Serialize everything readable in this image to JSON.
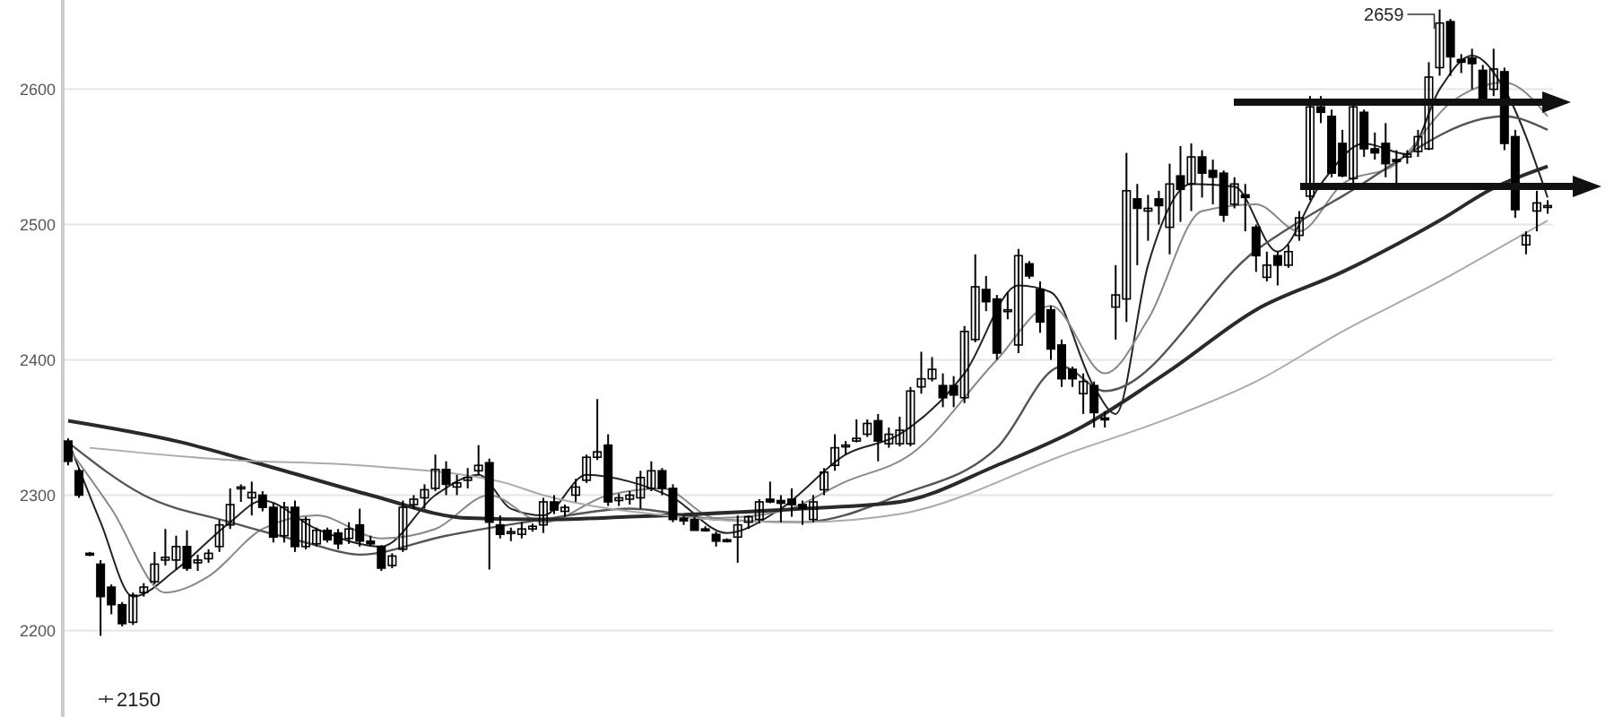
{
  "chart_data": {
    "type": "candlestick",
    "categories": [
      null,
      null,
      null,
      null,
      null,
      null,
      null,
      null,
      null,
      null,
      null,
      null,
      null,
      null,
      null,
      null,
      null,
      null,
      null,
      null,
      null,
      null,
      null,
      null,
      null,
      null,
      null,
      null,
      null,
      null,
      null,
      null,
      null,
      null,
      null,
      null,
      null,
      null,
      null,
      null,
      null,
      null,
      null,
      null,
      null,
      null,
      null,
      null,
      null,
      null,
      null,
      null,
      null,
      null,
      null,
      null,
      null,
      null,
      null,
      null,
      null,
      null,
      null,
      null,
      null,
      null,
      null,
      null,
      null,
      null,
      null,
      null,
      null,
      null,
      null,
      null,
      null,
      null,
      null,
      null,
      null,
      null,
      null,
      null,
      null,
      null,
      null,
      null,
      null,
      null,
      null,
      null,
      null,
      null,
      null,
      null,
      null,
      null,
      null,
      null,
      null,
      null,
      null,
      null,
      null,
      null,
      null,
      null,
      null,
      null,
      null,
      null,
      null,
      null,
      null,
      null,
      null,
      null,
      null,
      null,
      null,
      null,
      null,
      null,
      null,
      null,
      null,
      null,
      null,
      null,
      null,
      null,
      null,
      null,
      null,
      null,
      null,
      null
    ],
    "ohlc": [
      [
        2340,
        2342,
        2322,
        2325
      ],
      [
        2318,
        2320,
        2298,
        2300
      ],
      [
        2257,
        2258,
        2255,
        2256
      ],
      [
        2249,
        2252,
        2196,
        2225
      ],
      [
        2232,
        2234,
        2212,
        2219
      ],
      [
        2219,
        2221,
        2203,
        2205
      ],
      [
        2206,
        2228,
        2204,
        2226
      ],
      [
        2228,
        2235,
        2225,
        2232
      ],
      [
        2236,
        2258,
        2234,
        2249
      ],
      [
        2252,
        2275,
        2248,
        2254
      ],
      [
        2252,
        2270,
        2245,
        2262
      ],
      [
        2262,
        2274,
        2244,
        2246
      ],
      [
        2250,
        2256,
        2244,
        2252
      ],
      [
        2253,
        2260,
        2250,
        2257
      ],
      [
        2262,
        2282,
        2258,
        2278
      ],
      [
        2278,
        2305,
        2275,
        2293
      ],
      [
        2305,
        2308,
        2295,
        2306
      ],
      [
        2298,
        2310,
        2285,
        2302
      ],
      [
        2300,
        2303,
        2288,
        2291
      ],
      [
        2291,
        2294,
        2265,
        2269
      ],
      [
        2270,
        2295,
        2265,
        2291
      ],
      [
        2291,
        2296,
        2258,
        2262
      ],
      [
        2262,
        2284,
        2260,
        2282
      ],
      [
        2264,
        2276,
        2262,
        2274
      ],
      [
        2274,
        2276,
        2265,
        2267
      ],
      [
        2272,
        2275,
        2260,
        2264
      ],
      [
        2268,
        2280,
        2264,
        2275
      ],
      [
        2278,
        2290,
        2262,
        2266
      ],
      [
        2266,
        2270,
        2262,
        2264
      ],
      [
        2262,
        2263,
        2244,
        2246
      ],
      [
        2248,
        2257,
        2246,
        2255
      ],
      [
        2260,
        2296,
        2258,
        2291
      ],
      [
        2293,
        2300,
        2290,
        2297
      ],
      [
        2298,
        2308,
        2290,
        2304
      ],
      [
        2305,
        2330,
        2303,
        2319
      ],
      [
        2319,
        2325,
        2300,
        2308
      ],
      [
        2306,
        2315,
        2300,
        2309
      ],
      [
        2311,
        2320,
        2305,
        2313
      ],
      [
        2318,
        2337,
        2315,
        2322
      ],
      [
        2324,
        2327,
        2245,
        2280
      ],
      [
        2278,
        2285,
        2268,
        2271
      ],
      [
        2272,
        2276,
        2266,
        2273
      ],
      [
        2271,
        2280,
        2268,
        2275
      ],
      [
        2275,
        2279,
        2273,
        2277
      ],
      [
        2278,
        2298,
        2272,
        2295
      ],
      [
        2295,
        2300,
        2286,
        2289
      ],
      [
        2288,
        2293,
        2284,
        2291
      ],
      [
        2300,
        2312,
        2295,
        2306
      ],
      [
        2311,
        2330,
        2309,
        2328
      ],
      [
        2328,
        2371,
        2326,
        2332
      ],
      [
        2337,
        2345,
        2292,
        2295
      ],
      [
        2296,
        2301,
        2292,
        2298
      ],
      [
        2297,
        2303,
        2293,
        2300
      ],
      [
        2298,
        2318,
        2290,
        2313
      ],
      [
        2305,
        2325,
        2303,
        2318
      ],
      [
        2318,
        2320,
        2300,
        2305
      ],
      [
        2305,
        2308,
        2280,
        2282
      ],
      [
        2283,
        2285,
        2278,
        2281
      ],
      [
        2282,
        2284,
        2274,
        2274
      ],
      [
        2275,
        2277,
        2273,
        2274
      ],
      [
        2271,
        2273,
        2262,
        2266
      ],
      [
        2267,
        2268,
        2265,
        2266
      ],
      [
        2269,
        2285,
        2250,
        2278
      ],
      [
        2280,
        2285,
        2275,
        2284
      ],
      [
        2282,
        2297,
        2279,
        2295
      ],
      [
        2297,
        2310,
        2294,
        2295
      ],
      [
        2296,
        2300,
        2280,
        2294
      ],
      [
        2297,
        2305,
        2284,
        2293
      ],
      [
        2293,
        2296,
        2278,
        2290
      ],
      [
        2282,
        2300,
        2280,
        2295
      ],
      [
        2304,
        2320,
        2300,
        2317
      ],
      [
        2322,
        2345,
        2318,
        2335
      ],
      [
        2336,
        2340,
        2330,
        2337
      ],
      [
        2340,
        2356,
        2339,
        2342
      ],
      [
        2345,
        2356,
        2343,
        2353
      ],
      [
        2355,
        2360,
        2325,
        2340
      ],
      [
        2338,
        2350,
        2335,
        2345
      ],
      [
        2338,
        2358,
        2336,
        2348
      ],
      [
        2338,
        2380,
        2336,
        2377
      ],
      [
        2380,
        2406,
        2375,
        2386
      ],
      [
        2386,
        2402,
        2384,
        2393
      ],
      [
        2381,
        2390,
        2365,
        2372
      ],
      [
        2381,
        2388,
        2365,
        2374
      ],
      [
        2372,
        2425,
        2368,
        2421
      ],
      [
        2415,
        2478,
        2413,
        2454
      ],
      [
        2452,
        2462,
        2436,
        2443
      ],
      [
        2445,
        2448,
        2400,
        2405
      ],
      [
        2437,
        2450,
        2430,
        2437
      ],
      [
        2411,
        2482,
        2405,
        2477
      ],
      [
        2471,
        2473,
        2460,
        2462
      ],
      [
        2452,
        2458,
        2420,
        2428
      ],
      [
        2437,
        2440,
        2400,
        2408
      ],
      [
        2411,
        2415,
        2380,
        2386
      ],
      [
        2393,
        2395,
        2380,
        2386
      ],
      [
        2375,
        2390,
        2360,
        2384
      ],
      [
        2381,
        2384,
        2350,
        2361
      ],
      [
        2357,
        2362,
        2350,
        2356
      ],
      [
        2439,
        2470,
        2415,
        2448
      ],
      [
        2445,
        2553,
        2428,
        2525
      ],
      [
        2519,
        2530,
        2470,
        2512
      ],
      [
        2510,
        2522,
        2488,
        2512
      ],
      [
        2519,
        2525,
        2500,
        2514
      ],
      [
        2498,
        2545,
        2478,
        2530
      ],
      [
        2536,
        2558,
        2502,
        2526
      ],
      [
        2530,
        2560,
        2510,
        2550
      ],
      [
        2550,
        2555,
        2520,
        2538
      ],
      [
        2540,
        2548,
        2515,
        2535
      ],
      [
        2538,
        2540,
        2502,
        2507
      ],
      [
        2515,
        2535,
        2512,
        2530
      ],
      [
        2522,
        2530,
        2495,
        2520
      ],
      [
        2498,
        2500,
        2465,
        2477
      ],
      [
        2461,
        2480,
        2458,
        2470
      ],
      [
        2477,
        2480,
        2455,
        2470
      ],
      [
        2470,
        2485,
        2468,
        2480
      ],
      [
        2492,
        2510,
        2488,
        2505
      ],
      [
        2521,
        2595,
        2518,
        2587
      ],
      [
        2587,
        2595,
        2575,
        2583
      ],
      [
        2580,
        2585,
        2535,
        2538
      ],
      [
        2560,
        2570,
        2535,
        2536
      ],
      [
        2534,
        2590,
        2530,
        2587
      ],
      [
        2583,
        2585,
        2550,
        2556
      ],
      [
        2556,
        2568,
        2548,
        2553
      ],
      [
        2560,
        2575,
        2535,
        2545
      ],
      [
        2548,
        2555,
        2530,
        2547
      ],
      [
        2550,
        2555,
        2545,
        2552
      ],
      [
        2554,
        2570,
        2550,
        2565
      ],
      [
        2556,
        2620,
        2555,
        2609
      ],
      [
        2616,
        2659,
        2610,
        2649
      ],
      [
        2650,
        2652,
        2610,
        2624
      ],
      [
        2622,
        2626,
        2612,
        2620
      ],
      [
        2623,
        2630,
        2600,
        2619
      ],
      [
        2614,
        2618,
        2590,
        2593
      ],
      [
        2600,
        2630,
        2595,
        2615
      ],
      [
        2613,
        2616,
        2555,
        2560
      ],
      [
        2565,
        2570,
        2505,
        2511
      ],
      [
        2485,
        2495,
        2478,
        2492
      ],
      [
        2510,
        2525,
        2495,
        2516
      ],
      [
        2514,
        2518,
        2508,
        2514
      ]
    ],
    "series": [
      {
        "type": "line",
        "color": "#222222",
        "values": [
          2340,
          null,
          null,
          2280,
          null,
          null,
          2225,
          null,
          null,
          null,
          2245,
          null,
          null,
          null,
          null,
          2280,
          null,
          null,
          2296,
          null,
          null,
          null,
          null,
          2275,
          null,
          null,
          null,
          null,
          null,
          2262,
          null,
          null,
          null,
          null,
          2300,
          null,
          null,
          null,
          2315,
          null,
          null,
          2290,
          null,
          null,
          2285,
          null,
          null,
          null,
          2315,
          null,
          null,
          null,
          2310,
          null,
          null,
          null,
          2298,
          null,
          null,
          null,
          null,
          2272,
          null,
          null,
          null,
          null,
          2290,
          null,
          null,
          null,
          null,
          null,
          2330,
          null,
          null,
          null,
          null,
          2345,
          null,
          null,
          null,
          null,
          null,
          2390,
          null,
          null,
          null,
          null,
          2455,
          null,
          null,
          2450,
          null,
          null,
          null,
          2380,
          null,
          2360,
          null,
          null,
          2470,
          null,
          null,
          null,
          2530,
          null,
          null,
          null,
          2528,
          null,
          null,
          null,
          2480,
          null,
          null,
          null,
          2530,
          null,
          null,
          null,
          2560,
          null,
          null,
          null,
          2552,
          null,
          null,
          2600,
          null,
          null,
          2625,
          null,
          null,
          2600,
          null,
          null,
          null,
          2520
        ]
      },
      {
        "type": "line",
        "color": "#888888",
        "values": [
          2335,
          null,
          null,
          null,
          2290,
          null,
          null,
          null,
          null,
          2228,
          null,
          null,
          null,
          2240,
          null,
          null,
          null,
          null,
          2275,
          null,
          null,
          null,
          null,
          2285,
          null,
          null,
          null,
          null,
          null,
          2268,
          null,
          null,
          null,
          null,
          2275,
          null,
          null,
          null,
          null,
          2300,
          null,
          null,
          null,
          null,
          2280,
          null,
          null,
          null,
          null,
          null,
          2300,
          null,
          null,
          null,
          null,
          2305,
          null,
          null,
          null,
          null,
          2283,
          null,
          null,
          null,
          null,
          null,
          2288,
          null,
          null,
          null,
          null,
          null,
          2310,
          null,
          null,
          null,
          null,
          null,
          2330,
          null,
          null,
          null,
          null,
          null,
          null,
          null,
          2400,
          null,
          null,
          null,
          null,
          2440,
          null,
          null,
          null,
          null,
          2390,
          null,
          null,
          null,
          2430,
          null,
          null,
          null,
          null,
          2510,
          null,
          null,
          null,
          null,
          2515,
          null,
          null,
          null,
          2495,
          null,
          null,
          null,
          2530,
          null,
          null,
          null,
          null,
          2545,
          null,
          null,
          null,
          null,
          2590,
          null,
          null,
          null,
          null,
          2605,
          null,
          null,
          null,
          2580
        ]
      },
      {
        "type": "line",
        "color": "#555555",
        "values": [
          2339,
          null,
          null,
          null,
          null,
          null,
          null,
          2300,
          null,
          null,
          null,
          null,
          null,
          null,
          null,
          2280,
          null,
          null,
          null,
          null,
          null,
          null,
          2265,
          null,
          null,
          null,
          null,
          2256,
          null,
          null,
          null,
          null,
          null,
          null,
          null,
          2270,
          null,
          null,
          null,
          null,
          null,
          null,
          null,
          null,
          2282,
          null,
          null,
          null,
          null,
          null,
          null,
          null,
          2290,
          null,
          null,
          null,
          null,
          null,
          null,
          null,
          2282,
          null,
          null,
          null,
          null,
          null,
          null,
          null,
          2280,
          null,
          null,
          null,
          null,
          null,
          null,
          null,
          null,
          2300,
          null,
          null,
          null,
          null,
          null,
          null,
          null,
          null,
          2335,
          null,
          null,
          null,
          null,
          null,
          2395,
          null,
          null,
          null,
          2377,
          null,
          null,
          null,
          null,
          null,
          null,
          null,
          null,
          null,
          null,
          null,
          null,
          null,
          2481,
          null,
          null,
          null,
          null,
          null,
          null,
          null,
          2521,
          null,
          null,
          null,
          null,
          null,
          null,
          null,
          null,
          null,
          null,
          null,
          null,
          null,
          null,
          2580,
          null,
          null,
          null,
          2570
        ]
      },
      {
        "type": "line",
        "color": "#2a2a2a",
        "values": [
          2355,
          null,
          null,
          null,
          null,
          null,
          null,
          null,
          null,
          null,
          2340,
          null,
          null,
          null,
          null,
          null,
          null,
          null,
          null,
          null,
          2318,
          null,
          null,
          null,
          null,
          null,
          null,
          null,
          2300,
          null,
          null,
          null,
          null,
          null,
          null,
          null,
          null,
          2283,
          null,
          null,
          null,
          null,
          null,
          null,
          2282,
          null,
          null,
          null,
          null,
          null,
          null,
          null,
          2284,
          null,
          null,
          null,
          null,
          null,
          null,
          null,
          null,
          null,
          null,
          null,
          null,
          null,
          null,
          null,
          2290,
          null,
          null,
          null,
          null,
          null,
          null,
          null,
          null,
          2295,
          null,
          null,
          null,
          null,
          null,
          null,
          null,
          null,
          2322,
          null,
          null,
          null,
          null,
          null,
          null,
          null,
          2351,
          null,
          null,
          null,
          null,
          null,
          null,
          null,
          2392,
          null,
          null,
          null,
          null,
          null,
          null,
          null,
          2437,
          null,
          null,
          null,
          null,
          null,
          null,
          null,
          2465,
          null,
          null,
          null,
          null,
          null,
          null,
          null,
          null,
          2503,
          null,
          null,
          null,
          null,
          2527,
          null,
          null,
          null,
          null,
          2543
        ]
      },
      {
        "type": "line",
        "color": "#aaaaaa",
        "values": [
          null,
          null,
          2335,
          null,
          null,
          null,
          null,
          null,
          null,
          null,
          null,
          null,
          null,
          null,
          null,
          2326,
          null,
          null,
          null,
          null,
          null,
          null,
          null,
          null,
          null,
          null,
          null,
          2322,
          null,
          null,
          null,
          null,
          null,
          null,
          null,
          null,
          null,
          null,
          null,
          null,
          2310,
          null,
          null,
          null,
          2300,
          null,
          null,
          null,
          null,
          null,
          null,
          null,
          2288,
          null,
          null,
          null,
          null,
          null,
          null,
          null,
          null,
          null,
          null,
          null,
          null,
          null,
          null,
          null,
          2280,
          null,
          null,
          null,
          null,
          null,
          null,
          null,
          null,
          2286,
          null,
          null,
          null,
          null,
          null,
          null,
          null,
          null,
          null,
          null,
          null,
          null,
          null,
          null,
          null,
          2332,
          null,
          null,
          null,
          null,
          null,
          null,
          null,
          null,
          2357,
          null,
          null,
          null,
          null,
          null,
          null,
          null,
          2384,
          null,
          null,
          null,
          null,
          null,
          null,
          null,
          2421,
          null,
          null,
          null,
          null,
          null,
          null,
          null,
          null,
          2458,
          null,
          null,
          null,
          null,
          null,
          null,
          null,
          2494,
          null,
          2503
        ]
      }
    ],
    "ylim": [
      2136,
      2666
    ],
    "yticks": [
      2200,
      2300,
      2400,
      2500,
      2600
    ],
    "grid": "y",
    "tick_labels": "y",
    "annotations": [
      "2659",
      "2150"
    ]
  }
}
